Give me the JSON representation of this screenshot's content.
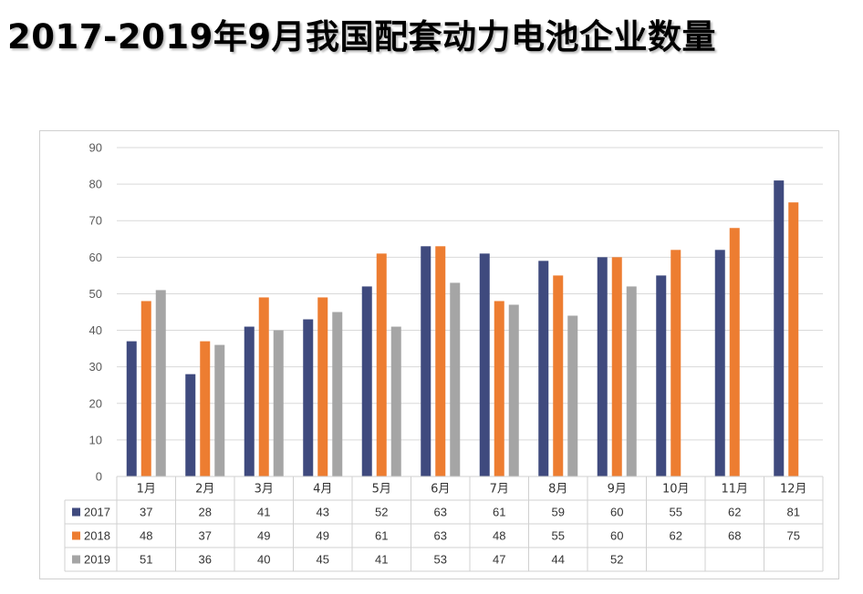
{
  "title": "2017-2019年9月我国配套动力电池企业数量",
  "chart_data": {
    "type": "bar",
    "categories": [
      "1月",
      "2月",
      "3月",
      "4月",
      "5月",
      "6月",
      "7月",
      "8月",
      "9月",
      "10月",
      "11月",
      "12月"
    ],
    "series": [
      {
        "name": "2017",
        "color": "#3f4a7e",
        "values": [
          37,
          28,
          41,
          43,
          52,
          63,
          61,
          59,
          60,
          55,
          62,
          81
        ]
      },
      {
        "name": "2018",
        "color": "#ed7d31",
        "values": [
          48,
          37,
          49,
          49,
          61,
          63,
          48,
          55,
          60,
          62,
          68,
          75
        ]
      },
      {
        "name": "2019",
        "color": "#a5a5a5",
        "values": [
          51,
          36,
          40,
          45,
          41,
          53,
          47,
          44,
          52,
          null,
          null,
          null
        ]
      }
    ],
    "ylim": [
      0,
      90
    ],
    "yticks": [
      0,
      10,
      20,
      30,
      40,
      50,
      60,
      70,
      80,
      90
    ],
    "grid": true,
    "legend": "data-table"
  }
}
